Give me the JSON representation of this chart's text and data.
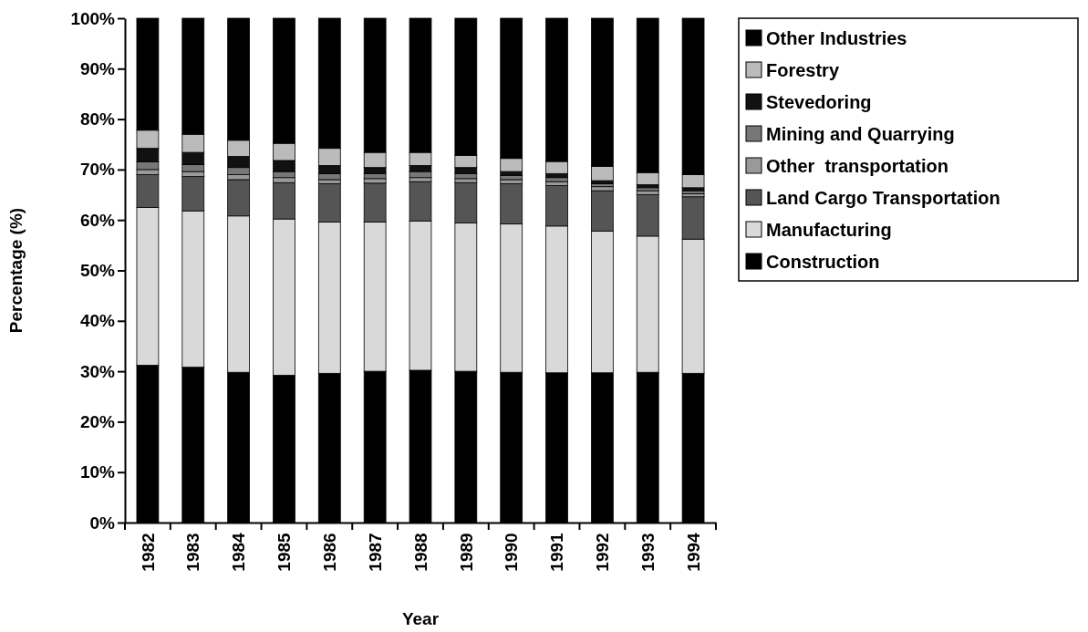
{
  "chart_data": {
    "type": "bar",
    "stacked": true,
    "xlabel": "Year",
    "ylabel": "Percentage (%)",
    "categories": [
      "1982",
      "1983",
      "1984",
      "1985",
      "1986",
      "1987",
      "1988",
      "1989",
      "1990",
      "1991",
      "1992",
      "1993",
      "1994"
    ],
    "ylim": [
      0,
      100
    ],
    "yticks": [
      {
        "value": 0,
        "label": "0%"
      },
      {
        "value": 10,
        "label": "10%"
      },
      {
        "value": 20,
        "label": "20%"
      },
      {
        "value": 30,
        "label": "30%"
      },
      {
        "value": 40,
        "label": "40%"
      },
      {
        "value": 50,
        "label": "50%"
      },
      {
        "value": 60,
        "label": "60%"
      },
      {
        "value": 70,
        "label": "70%"
      },
      {
        "value": 80,
        "label": "80%"
      },
      {
        "value": 90,
        "label": "90%"
      },
      {
        "value": 100,
        "label": "100%"
      }
    ],
    "legend": "top right",
    "series": [
      {
        "name": "Construction",
        "color": "#000000",
        "values": [
          31.2,
          30.8,
          29.8,
          29.2,
          29.6,
          30.0,
          30.2,
          30.0,
          29.8,
          29.7,
          29.7,
          29.8,
          29.6
        ]
      },
      {
        "name": "Manufacturing",
        "color": "#d9d9d9",
        "values": [
          31.3,
          31.0,
          31.0,
          31.0,
          30.0,
          29.6,
          29.6,
          29.4,
          29.4,
          29.1,
          28.1,
          27.0,
          26.6
        ]
      },
      {
        "name": "Land Cargo Transportation",
        "color": "#555555",
        "values": [
          6.5,
          6.8,
          7.2,
          7.2,
          7.6,
          7.7,
          7.8,
          8.0,
          8.0,
          8.0,
          8.0,
          8.2,
          8.4
        ]
      },
      {
        "name": "Other  transportation",
        "color": "#999999",
        "values": [
          1.0,
          1.0,
          1.0,
          1.0,
          0.8,
          0.9,
          0.8,
          0.8,
          0.8,
          0.8,
          0.8,
          0.8,
          0.6
        ]
      },
      {
        "name": "Mining and Quarrying",
        "color": "#777777",
        "values": [
          1.5,
          1.4,
          1.4,
          1.2,
          1.2,
          1.0,
          1.2,
          1.0,
          0.8,
          0.8,
          0.6,
          0.6,
          0.6
        ]
      },
      {
        "name": "Stevedoring",
        "color": "#111111",
        "values": [
          2.7,
          2.4,
          2.2,
          2.2,
          1.6,
          1.2,
          1.2,
          1.2,
          0.8,
          0.8,
          0.6,
          0.6,
          0.6
        ]
      },
      {
        "name": "Forestry",
        "color": "#bbbbbb",
        "values": [
          3.6,
          3.6,
          3.2,
          3.4,
          3.4,
          3.0,
          2.6,
          2.4,
          2.6,
          2.4,
          2.8,
          2.4,
          2.6
        ]
      },
      {
        "name": "Other Industries",
        "color": "#000000",
        "values": [
          22.2,
          23.0,
          24.2,
          24.8,
          25.8,
          26.6,
          26.6,
          27.2,
          27.8,
          28.4,
          29.4,
          30.6,
          31.0
        ]
      }
    ]
  }
}
